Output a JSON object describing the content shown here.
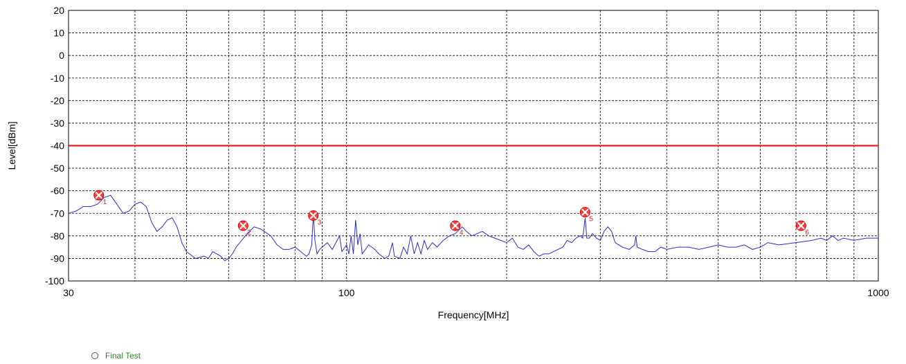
{
  "chart_data": {
    "type": "line",
    "xlabel": "Frequency[MHz]",
    "ylabel": "Level[dBm]",
    "x_scale": "log",
    "xlim": [
      30,
      1000
    ],
    "ylim": [
      -100,
      20
    ],
    "x_ticks": [
      {
        "value": 30,
        "label": "30"
      },
      {
        "value": 100,
        "label": "100"
      },
      {
        "value": 1000,
        "label": "1000"
      }
    ],
    "x_minor_grid": [
      40,
      50,
      60,
      70,
      80,
      90,
      200,
      300,
      400,
      500,
      600,
      700,
      800,
      900
    ],
    "y_ticks": [
      20,
      10,
      0,
      -10,
      -20,
      -30,
      -40,
      -50,
      -60,
      -70,
      -80,
      -90,
      -100
    ],
    "grid": true,
    "limit_line": {
      "value": -40,
      "color": "#ff0000"
    },
    "series": [
      {
        "color": "#2b2bc8",
        "points": [
          [
            30,
            -70
          ],
          [
            31,
            -69
          ],
          [
            32,
            -67
          ],
          [
            33,
            -67
          ],
          [
            34,
            -66
          ],
          [
            35,
            -63
          ],
          [
            36,
            -62
          ],
          [
            37,
            -66
          ],
          [
            38,
            -70
          ],
          [
            39,
            -69
          ],
          [
            40,
            -66
          ],
          [
            41,
            -65
          ],
          [
            42,
            -67
          ],
          [
            43,
            -74
          ],
          [
            44,
            -78
          ],
          [
            45,
            -76
          ],
          [
            46,
            -73
          ],
          [
            47,
            -72
          ],
          [
            48,
            -76
          ],
          [
            49,
            -83
          ],
          [
            50,
            -87
          ],
          [
            52,
            -90
          ],
          [
            54,
            -89
          ],
          [
            55,
            -90
          ],
          [
            56,
            -87
          ],
          [
            57,
            -88
          ],
          [
            58,
            -89
          ],
          [
            59,
            -91
          ],
          [
            60,
            -90
          ],
          [
            61,
            -88
          ],
          [
            62,
            -85
          ],
          [
            63,
            -83
          ],
          [
            65,
            -79
          ],
          [
            67,
            -76
          ],
          [
            69,
            -77
          ],
          [
            70,
            -78
          ],
          [
            72,
            -80
          ],
          [
            74,
            -84
          ],
          [
            76,
            -86
          ],
          [
            78,
            -86
          ],
          [
            80,
            -85
          ],
          [
            82,
            -87
          ],
          [
            84,
            -89
          ],
          [
            85,
            -88
          ],
          [
            86,
            -84
          ],
          [
            86.6,
            -70
          ],
          [
            87.2,
            -82
          ],
          [
            88,
            -88
          ],
          [
            89,
            -86
          ],
          [
            90,
            -85
          ],
          [
            92,
            -83
          ],
          [
            94,
            -86
          ],
          [
            95,
            -84
          ],
          [
            97,
            -80
          ],
          [
            98,
            -87
          ],
          [
            100,
            -84
          ],
          [
            101,
            -88
          ],
          [
            102,
            -80
          ],
          [
            103,
            -88
          ],
          [
            104,
            -73
          ],
          [
            105,
            -84
          ],
          [
            106,
            -79
          ],
          [
            107,
            -88
          ],
          [
            110,
            -84
          ],
          [
            113,
            -86
          ],
          [
            115,
            -88
          ],
          [
            118,
            -90
          ],
          [
            120,
            -89
          ],
          [
            122,
            -83
          ],
          [
            123,
            -89
          ],
          [
            126,
            -90
          ],
          [
            128,
            -85
          ],
          [
            130,
            -88
          ],
          [
            132,
            -80
          ],
          [
            134,
            -88
          ],
          [
            136,
            -83
          ],
          [
            138,
            -88
          ],
          [
            140,
            -82
          ],
          [
            142,
            -86
          ],
          [
            145,
            -83
          ],
          [
            148,
            -85
          ],
          [
            152,
            -82
          ],
          [
            156,
            -80
          ],
          [
            160,
            -79
          ],
          [
            165,
            -76
          ],
          [
            168,
            -78
          ],
          [
            172,
            -80
          ],
          [
            176,
            -79
          ],
          [
            180,
            -78
          ],
          [
            185,
            -80
          ],
          [
            190,
            -81
          ],
          [
            195,
            -82
          ],
          [
            200,
            -83
          ],
          [
            205,
            -81
          ],
          [
            210,
            -85
          ],
          [
            215,
            -86
          ],
          [
            220,
            -84
          ],
          [
            225,
            -87
          ],
          [
            230,
            -89
          ],
          [
            235,
            -88
          ],
          [
            240,
            -88
          ],
          [
            245,
            -87
          ],
          [
            250,
            -86
          ],
          [
            255,
            -85
          ],
          [
            260,
            -82
          ],
          [
            265,
            -83
          ],
          [
            270,
            -81
          ],
          [
            275,
            -80
          ],
          [
            278,
            -81
          ],
          [
            281,
            -72
          ],
          [
            283,
            -81
          ],
          [
            286,
            -81
          ],
          [
            290,
            -79
          ],
          [
            295,
            -81
          ],
          [
            300,
            -82
          ],
          [
            305,
            -78
          ],
          [
            310,
            -76
          ],
          [
            315,
            -78
          ],
          [
            320,
            -83
          ],
          [
            330,
            -85
          ],
          [
            340,
            -86
          ],
          [
            348,
            -84
          ],
          [
            350,
            -80
          ],
          [
            352,
            -85
          ],
          [
            360,
            -86
          ],
          [
            370,
            -87
          ],
          [
            380,
            -87
          ],
          [
            390,
            -85
          ],
          [
            400,
            -86
          ],
          [
            420,
            -85
          ],
          [
            440,
            -85
          ],
          [
            460,
            -86
          ],
          [
            480,
            -85
          ],
          [
            500,
            -84
          ],
          [
            520,
            -85
          ],
          [
            540,
            -85
          ],
          [
            560,
            -84
          ],
          [
            580,
            -86
          ],
          [
            600,
            -85
          ],
          [
            620,
            -83
          ],
          [
            650,
            -84
          ],
          [
            700,
            -83
          ],
          [
            750,
            -82
          ],
          [
            780,
            -81
          ],
          [
            800,
            -82
          ],
          [
            820,
            -80
          ],
          [
            840,
            -82
          ],
          [
            860,
            -81
          ],
          [
            900,
            -82
          ],
          [
            950,
            -81
          ],
          [
            1000,
            -81
          ]
        ]
      }
    ],
    "markers": [
      {
        "label": "1",
        "x": 34.2,
        "y": -62.0
      },
      {
        "label": "2",
        "x": 63.9,
        "y": -75.5
      },
      {
        "label": "3",
        "x": 86.6,
        "y": -71.0
      },
      {
        "label": "4",
        "x": 160.1,
        "y": -75.5
      },
      {
        "label": "5",
        "x": 280.9,
        "y": -69.5
      },
      {
        "label": "6",
        "x": 715.6,
        "y": -75.5
      }
    ]
  },
  "legend": {
    "label": "Final Test"
  }
}
